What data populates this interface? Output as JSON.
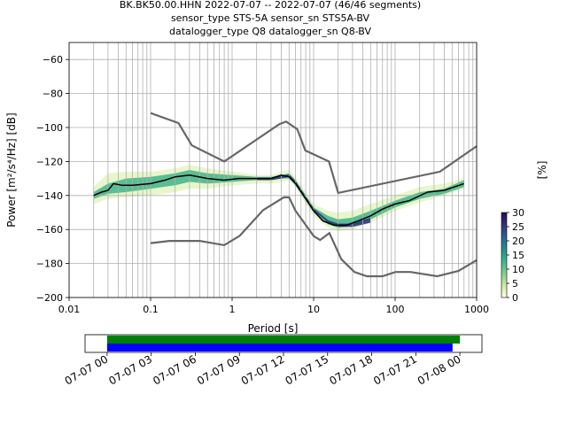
{
  "title_lines": [
    "BK.BK50.00.HHN   2022-07-07 -- 2022-07-07  (46/46 segments)",
    "sensor_type STS-5A sensor_sn STS5A-BV",
    "datalogger_type Q8 datalogger_sn Q8-BV"
  ],
  "chart_data": [
    {
      "type": "heatmap",
      "xlabel": "Period [s]",
      "ylabel": "Power [m²/s⁴/Hz] [dB]",
      "x_scale": "log",
      "xlim": [
        0.01,
        1000
      ],
      "ylim": [
        -200,
        -50
      ],
      "x_ticks": [
        0.01,
        0.1,
        1,
        10,
        100,
        1000
      ],
      "x_tick_labels": [
        "0.01",
        "0.1",
        "1",
        "10",
        "100",
        "1000"
      ],
      "y_ticks": [
        -200,
        -180,
        -160,
        -140,
        -120,
        -100,
        -80,
        -60
      ],
      "y_tick_labels": [
        "−200",
        "−180",
        "−160",
        "−140",
        "−120",
        "−100",
        "−80",
        "−60"
      ],
      "grid": true,
      "colorbar": {
        "label": "[%]",
        "ticks": [
          0,
          5,
          10,
          15,
          20,
          25,
          30
        ],
        "range": [
          0,
          30
        ],
        "colors": [
          "#ffffe0",
          "#c6e89f",
          "#7fcd8f",
          "#3bb38d",
          "#1e8c8c",
          "#2c5f94",
          "#30307a",
          "#2a0a4a"
        ]
      },
      "noise_models": {
        "color": "#666666",
        "nhnm": {
          "x": [
            0.1,
            0.22,
            0.32,
            0.8,
            3.8,
            4.6,
            6.3,
            7.9,
            15.4,
            20,
            354.8,
            1000
          ],
          "y": [
            -91.5,
            -97.4,
            -110.5,
            -120,
            -98,
            -96.5,
            -101,
            -113.5,
            -120,
            -138.5,
            -126,
            -111
          ]
        },
        "nlnm": {
          "x": [
            0.1,
            0.17,
            0.4,
            0.8,
            1.24,
            2.4,
            4.3,
            5,
            6,
            10,
            12,
            15.6,
            21.9,
            31.6,
            45,
            70,
            101,
            154,
            328,
            600,
            1000
          ],
          "y": [
            -168,
            -166.7,
            -166.7,
            -169.2,
            -163.7,
            -148.6,
            -141.1,
            -141.1,
            -149,
            -163.8,
            -166.2,
            -162.1,
            -177.5,
            -185,
            -187.5,
            -187.5,
            -185,
            -185,
            -187.5,
            -184.4,
            -178
          ]
        }
      },
      "series": [
        {
          "name": "",
          "color": "#000000",
          "x": [
            0.02,
            0.025,
            0.03,
            0.035,
            0.045,
            0.06,
            0.1,
            0.15,
            0.2,
            0.3,
            0.5,
            0.8,
            1.2,
            2,
            3,
            4,
            5,
            6,
            8,
            10,
            13,
            18,
            25,
            35,
            50,
            70,
            100,
            150,
            250,
            400,
            700
          ],
          "y": [
            -140,
            -138,
            -137,
            -133,
            -134,
            -134,
            -133,
            -131,
            -129,
            -128,
            -130,
            -131,
            -130,
            -130,
            -130,
            -128,
            -129,
            -133,
            -142,
            -149,
            -155,
            -157.5,
            -157.5,
            -155,
            -152,
            -148,
            -145,
            -143,
            -138,
            -137,
            -133
          ]
        }
      ],
      "density_bands": [
        {
          "percent": 2,
          "x": [
            0.02,
            0.03,
            0.05,
            0.1,
            0.2,
            0.3,
            0.5,
            1,
            2,
            3,
            4,
            5,
            6,
            8,
            10,
            15,
            20,
            30,
            50,
            100,
            200,
            400,
            700
          ],
          "y_low": [
            -145,
            -142,
            -141,
            -140,
            -138,
            -136,
            -136,
            -134,
            -133,
            -133,
            -132,
            -131,
            -135,
            -145,
            -152,
            -159,
            -161,
            -160,
            -156,
            -149,
            -144,
            -140,
            -136
          ],
          "y_high": [
            -135,
            -127,
            -126,
            -126,
            -124,
            -122,
            -124,
            -126,
            -128,
            -128,
            -126,
            -125,
            -129,
            -138,
            -145,
            -149,
            -150,
            -149,
            -145,
            -140,
            -135,
            -133,
            -130
          ]
        },
        {
          "percent": 12,
          "x": [
            0.02,
            0.03,
            0.05,
            0.1,
            0.2,
            0.3,
            0.5,
            1,
            2,
            3,
            4,
            5,
            6,
            8,
            10,
            15,
            20,
            30,
            50,
            100,
            200,
            400,
            700
          ],
          "y_low": [
            -142,
            -139,
            -138,
            -136,
            -134,
            -132,
            -133,
            -132,
            -131,
            -131,
            -130,
            -130,
            -134,
            -143,
            -150,
            -157,
            -159,
            -158,
            -154,
            -147,
            -142,
            -139,
            -135
          ],
          "y_high": [
            -138,
            -133,
            -130,
            -129,
            -127,
            -125,
            -127,
            -128,
            -129,
            -129,
            -128,
            -127,
            -131,
            -140,
            -147,
            -152,
            -154,
            -153,
            -149,
            -143,
            -138,
            -136,
            -131
          ]
        },
        {
          "percent": 25,
          "x": [
            2,
            3,
            4,
            5,
            6,
            8,
            10,
            15,
            20,
            30,
            50
          ],
          "y_low": [
            -131,
            -131,
            -130,
            -129,
            -133,
            -142,
            -149,
            -156,
            -158.5,
            -158.5,
            -156
          ],
          "y_high": [
            -129.5,
            -129.5,
            -128.5,
            -127.5,
            -131.5,
            -140.5,
            -147.5,
            -154.5,
            -156.5,
            -156.5,
            -153
          ]
        }
      ]
    },
    {
      "type": "bar",
      "title": "",
      "x_tick_labels": [
        "07-07 00",
        "07-07 03",
        "07-07 06",
        "07-07 09",
        "07-07 12",
        "07-07 15",
        "07-07 18",
        "07-07 21",
        "07-08 00"
      ],
      "xlim_hours": [
        -1.5,
        25.5
      ],
      "bars": [
        {
          "color": "#008000",
          "start_hour": 0,
          "end_hour": 24.0
        },
        {
          "color": "#0000ff",
          "start_hour": 0,
          "end_hour": 23.5
        }
      ]
    }
  ]
}
